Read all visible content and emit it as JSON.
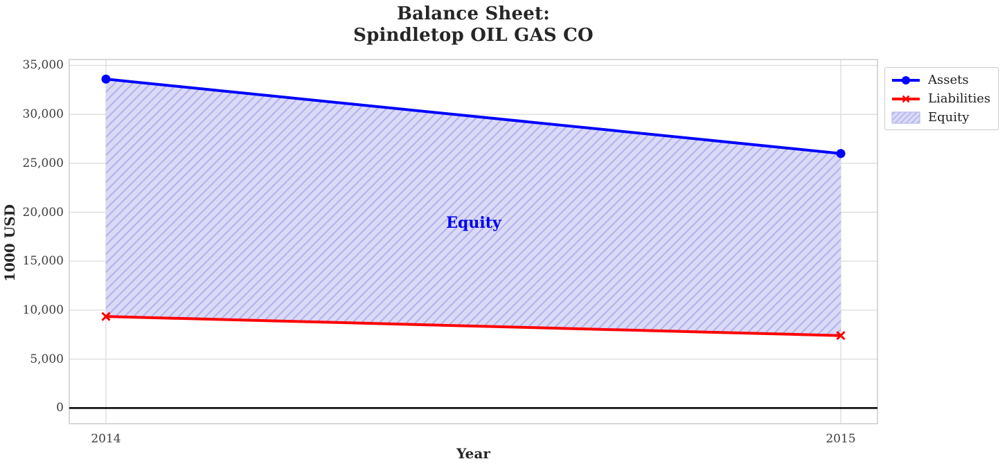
{
  "chart_data": {
    "type": "line",
    "title_lines": [
      "Balance Sheet:",
      "Spindletop OIL GAS CO"
    ],
    "xlabel": "Year",
    "ylabel": "1000 USD",
    "x_categories": [
      "2014",
      "2015"
    ],
    "series": [
      {
        "name": "Assets",
        "color": "#0000ff",
        "marker": "circle",
        "values": [
          33600,
          26000
        ]
      },
      {
        "name": "Liabilities",
        "color": "#ff0000",
        "marker": "x",
        "values": [
          9350,
          7400
        ]
      }
    ],
    "area": {
      "name": "Equity",
      "between": [
        "Assets",
        "Liabilities"
      ],
      "annotation": "Equity",
      "annotation_color": "#0000ee",
      "fill": "#dadaf7",
      "hatch": "///",
      "hatch_color": "#b3b3ec",
      "values": [
        24250,
        18600
      ]
    },
    "y_ticks": [
      0,
      5000,
      10000,
      15000,
      20000,
      25000,
      30000,
      35000
    ],
    "y_tick_labels": [
      "0",
      "5,000",
      "10,000",
      "15,000",
      "20,000",
      "25,000",
      "30,000",
      "35,000"
    ],
    "x_tick_labels": [
      "2014",
      "2015"
    ],
    "ylim": [
      -1600,
      35600
    ],
    "grid": true,
    "zero_line": true,
    "layout_hints": {
      "grid_color": "#dcdcdc",
      "spine_color": "#cfcfcf",
      "tick_text_color": "#3d3d3d",
      "legend_position": "outside-upper-right"
    },
    "legend": {
      "entries": [
        "Assets",
        "Liabilities",
        "Equity"
      ]
    }
  }
}
